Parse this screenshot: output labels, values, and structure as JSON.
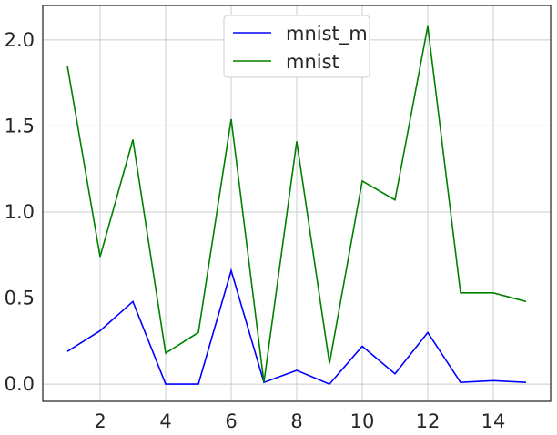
{
  "chart_data": {
    "type": "line",
    "title": "",
    "xlabel": "",
    "ylabel": "",
    "xlim": [
      0.25,
      15.75
    ],
    "ylim": [
      -0.1,
      2.2
    ],
    "x": [
      1,
      2,
      3,
      4,
      5,
      6,
      7,
      8,
      9,
      10,
      11,
      12,
      13,
      14,
      15
    ],
    "xticks": [
      2,
      4,
      6,
      8,
      10,
      12,
      14
    ],
    "xtick_labels": [
      "2",
      "4",
      "6",
      "8",
      "10",
      "12",
      "14"
    ],
    "yticks": [
      0.0,
      0.5,
      1.0,
      1.5,
      2.0
    ],
    "ytick_labels": [
      "0.0",
      "0.5",
      "1.0",
      "1.5",
      "2.0"
    ],
    "grid": true,
    "legend_position": "top-center",
    "series": [
      {
        "name": "mnist_m",
        "color": "#0000ff",
        "values": [
          0.19,
          0.31,
          0.48,
          0.0,
          0.0,
          0.66,
          0.01,
          0.08,
          0.0,
          0.22,
          0.06,
          0.3,
          0.01,
          0.02,
          0.01
        ]
      },
      {
        "name": "mnist",
        "color": "#008000",
        "values": [
          1.85,
          0.74,
          1.42,
          0.18,
          0.3,
          1.54,
          0.01,
          1.41,
          0.12,
          1.18,
          1.07,
          2.08,
          0.53,
          0.53,
          0.48
        ]
      }
    ]
  }
}
